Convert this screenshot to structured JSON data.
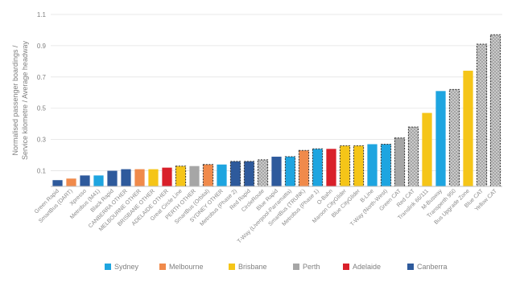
{
  "chart_data": {
    "type": "bar",
    "title": "",
    "ylabel_lines": [
      "Normalised passenger boardings /",
      "Service kilometre / Average headway"
    ],
    "xlabel": "",
    "ylim": [
      0,
      1.1
    ],
    "yticks": [
      "0.1",
      "0.3",
      "0.5",
      "0.7",
      "0.9",
      "1.1"
    ],
    "grid": true,
    "legend_position": "bottom",
    "colors": {
      "Sydney": "#1ea5e0",
      "Melbourne": "#f08a4b",
      "Brisbane": "#f5c518",
      "Perth": "#a6a6a6",
      "Adelaide": "#d9202a",
      "Canberra": "#2e5a9c"
    },
    "legend": [
      "Sydney",
      "Melbourne",
      "Brisbane",
      "Perth",
      "Adelaide",
      "Canberra"
    ],
    "categories": [
      "Green Rapid",
      "SmartBus (DART)",
      "Xpresso",
      "Metrobus (M41)",
      "Black Rapid",
      "CANBERRA OTHER",
      "MELBOURNE OTHER",
      "BRISBANE OTHER",
      "ADELAIDE OTHER",
      "Great Circle Line",
      "PERTH OTHER",
      "SmartBus (Orbital)",
      "SYDNEY OTHER",
      "Metrobus (Phase 2)",
      "Red Rapid",
      "CircleRoute",
      "Blue Rapid",
      "T-Way (Liverpool-Parramatta)",
      "SmartBus (TRUNK)",
      "Metrobus (Phase 1)",
      "O-Bahn",
      "Maroon CityGlider",
      "Blue CityGlider",
      "B-Line",
      "T-Way (North-West)",
      "Green CAT",
      "Red CAT",
      "Translink 66/111",
      "M-Busway",
      "Transperth 950",
      "Bus Upgrade Zone",
      "Blue CAT",
      "Yellow CAT"
    ],
    "series": [
      {
        "values": [
          0.04,
          0.05,
          0.07,
          0.07,
          0.1,
          0.11,
          0.11,
          0.11,
          0.12,
          0.13,
          0.13,
          0.14,
          0.14,
          0.16,
          0.16,
          0.17,
          0.19,
          0.19,
          0.23,
          0.24,
          0.24,
          0.26,
          0.26,
          0.27,
          0.27,
          0.31,
          0.38,
          0.47,
          0.61,
          0.62,
          0.74,
          0.91,
          0.97
        ],
        "cities": [
          "Canberra",
          "Melbourne",
          "Canberra",
          "Sydney",
          "Canberra",
          "Canberra",
          "Melbourne",
          "Brisbane",
          "Adelaide",
          "Brisbane",
          "Perth",
          "Melbourne",
          "Sydney",
          "Canberra",
          "Canberra",
          "Perth",
          "Canberra",
          "Sydney",
          "Melbourne",
          "Sydney",
          "Adelaide",
          "Brisbane",
          "Brisbane",
          "Sydney",
          "Sydney",
          "Perth",
          "Perth",
          "Brisbane",
          "Sydney",
          "Perth",
          "Brisbane",
          "Perth",
          "Perth"
        ],
        "dashed_outline": [
          false,
          false,
          false,
          false,
          false,
          false,
          false,
          false,
          false,
          true,
          false,
          true,
          false,
          true,
          true,
          true,
          false,
          true,
          true,
          true,
          false,
          true,
          true,
          false,
          true,
          true,
          true,
          false,
          false,
          true,
          false,
          true,
          true
        ],
        "hatched": [
          false,
          false,
          false,
          false,
          false,
          false,
          false,
          false,
          false,
          false,
          false,
          false,
          false,
          false,
          false,
          true,
          false,
          false,
          false,
          false,
          false,
          false,
          false,
          false,
          false,
          false,
          true,
          false,
          false,
          true,
          false,
          true,
          true
        ]
      }
    ]
  }
}
